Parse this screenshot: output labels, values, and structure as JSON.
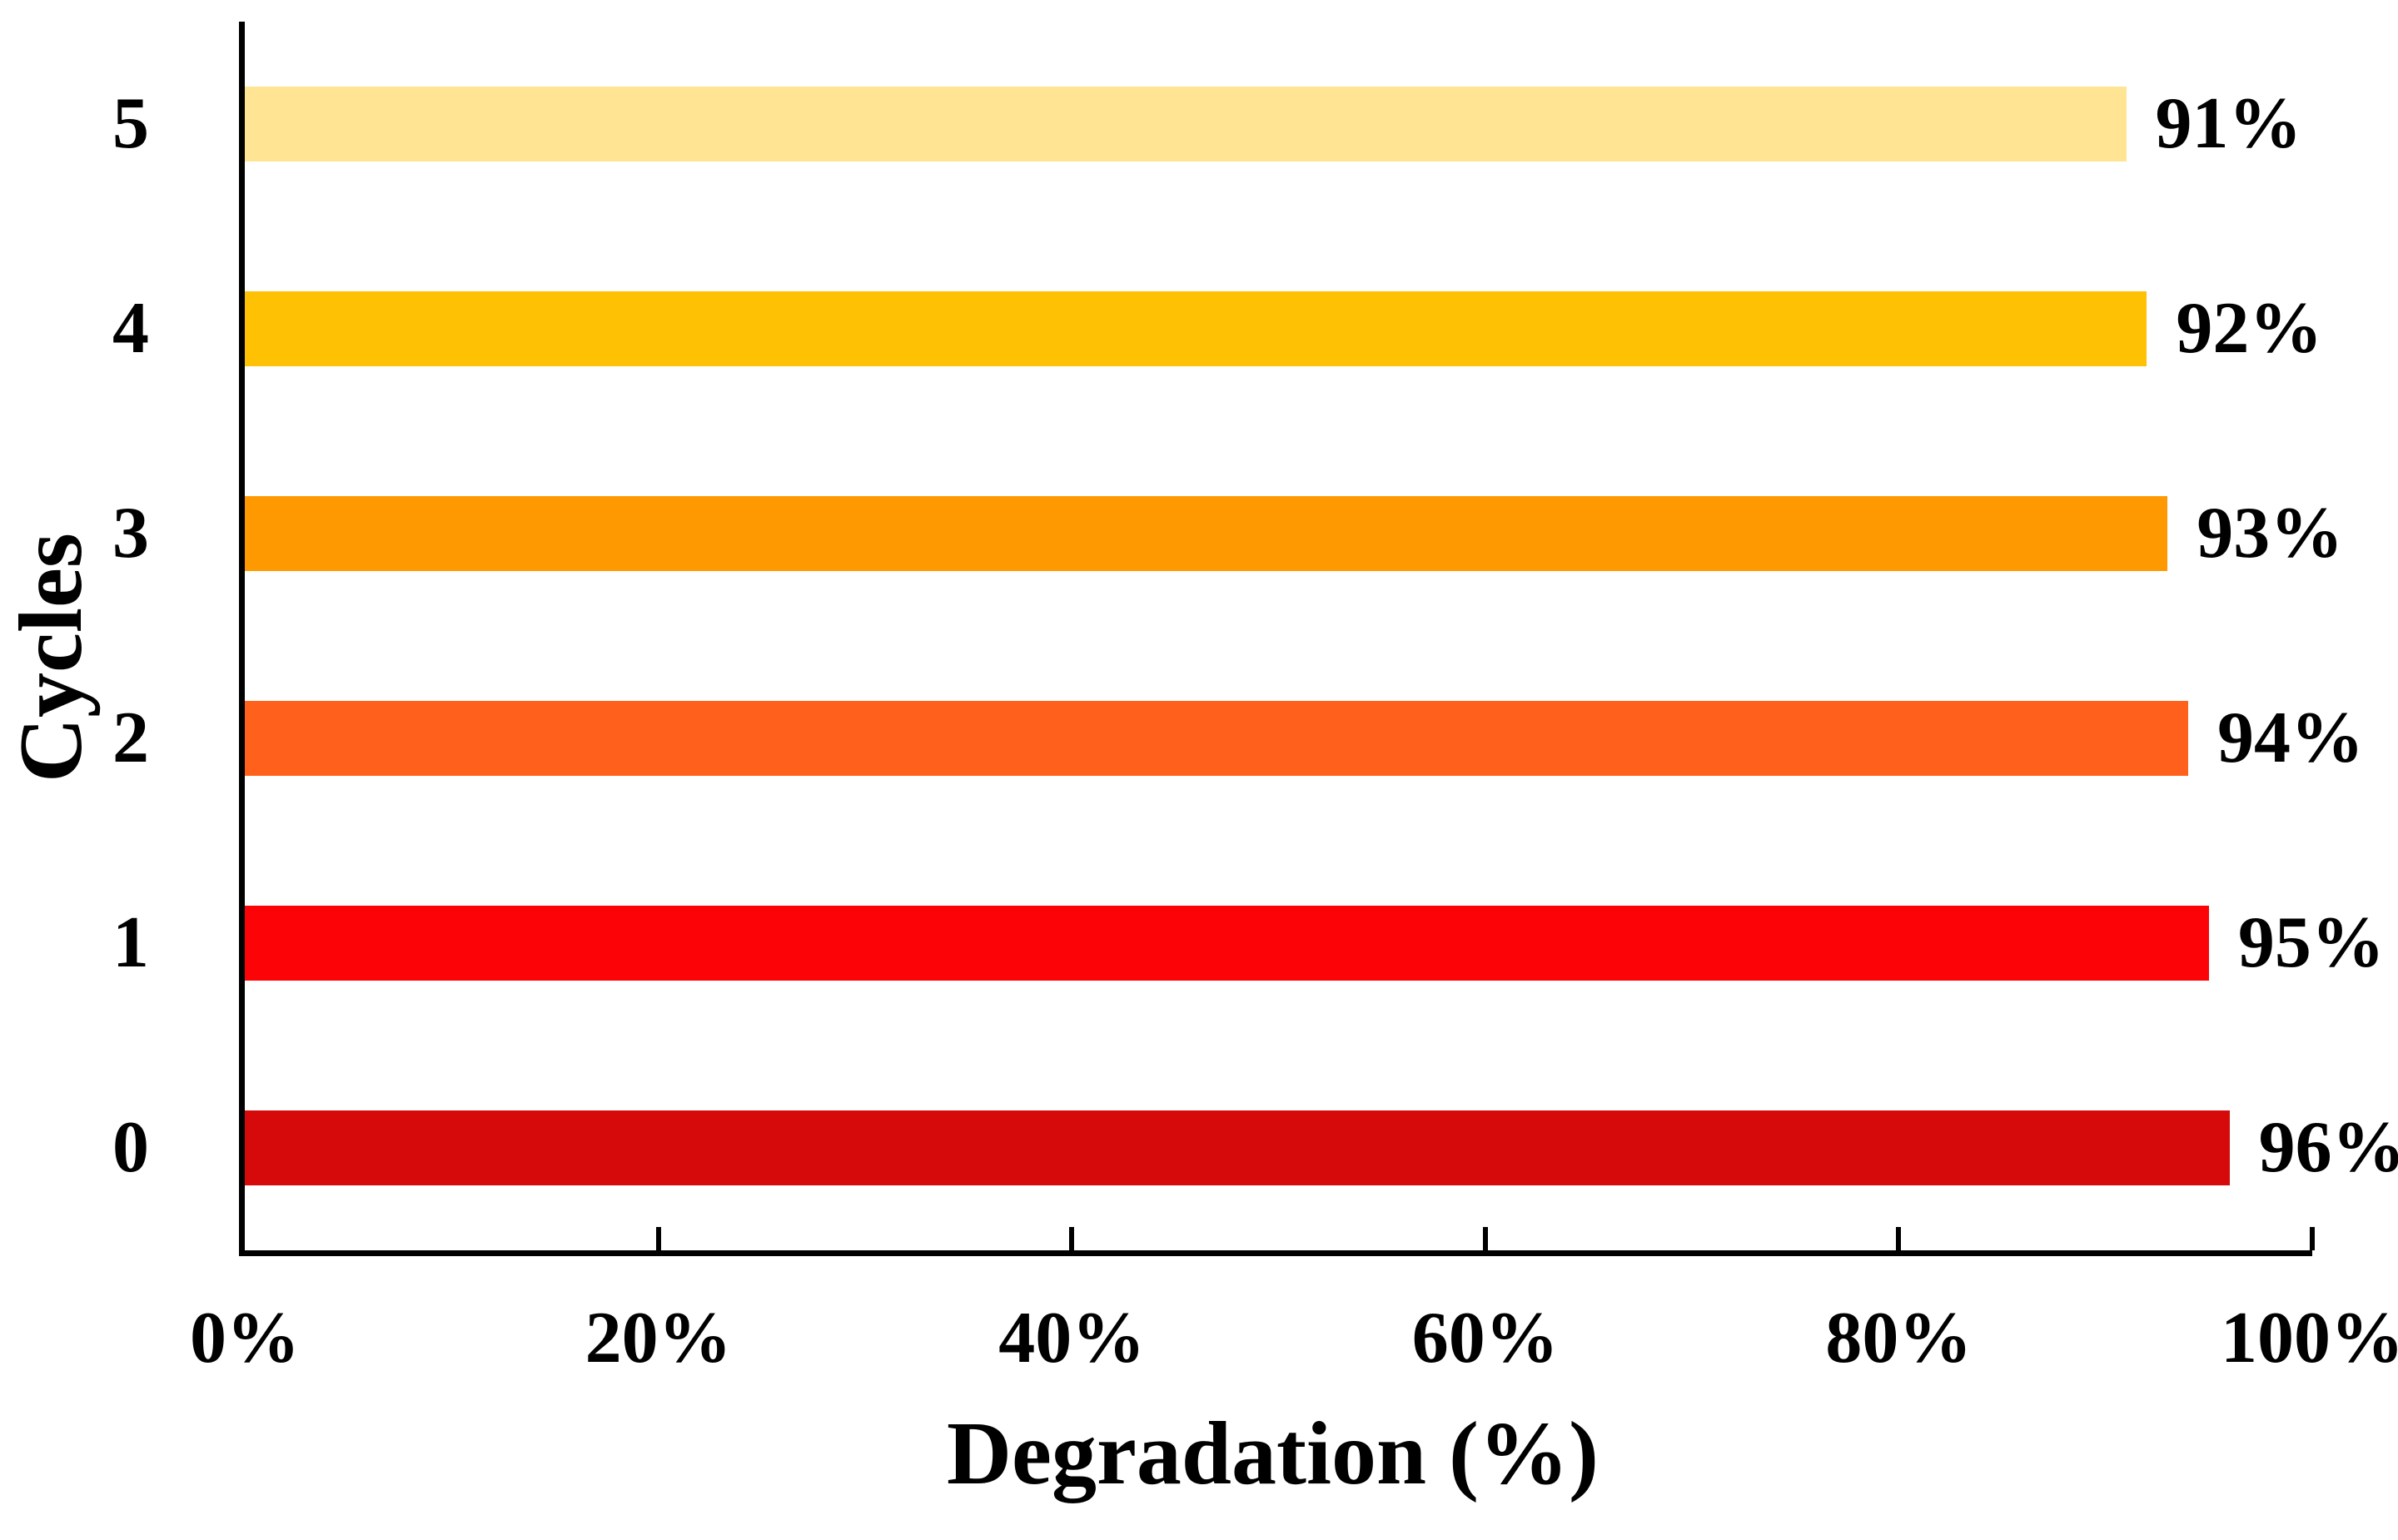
{
  "chart_data": {
    "type": "bar",
    "orientation": "horizontal",
    "title": "",
    "xlabel": "Degradation (%)",
    "ylabel": "Cycles",
    "categories": [
      "5",
      "4",
      "3",
      "2",
      "1",
      "0"
    ],
    "values": [
      91,
      92,
      93,
      94,
      95,
      96
    ],
    "bar_labels": [
      "91%",
      "92%",
      "93%",
      "94%",
      "95%",
      "96%"
    ],
    "bar_colors": [
      "#FFE593",
      "#FFC103",
      "#FF9901",
      "#FF611C",
      "#FB0307",
      "#D60A0A"
    ],
    "xlim": [
      0,
      100
    ],
    "x_tick_values": [
      0,
      20,
      40,
      60,
      80,
      100
    ],
    "x_tick_labels": [
      "0%",
      "20%",
      "40%",
      "60%",
      "80%",
      "100%"
    ],
    "grid": false,
    "legend": false,
    "axis_color": "#000000",
    "text_color": "#000000",
    "background_color": "#FFFFFF"
  }
}
